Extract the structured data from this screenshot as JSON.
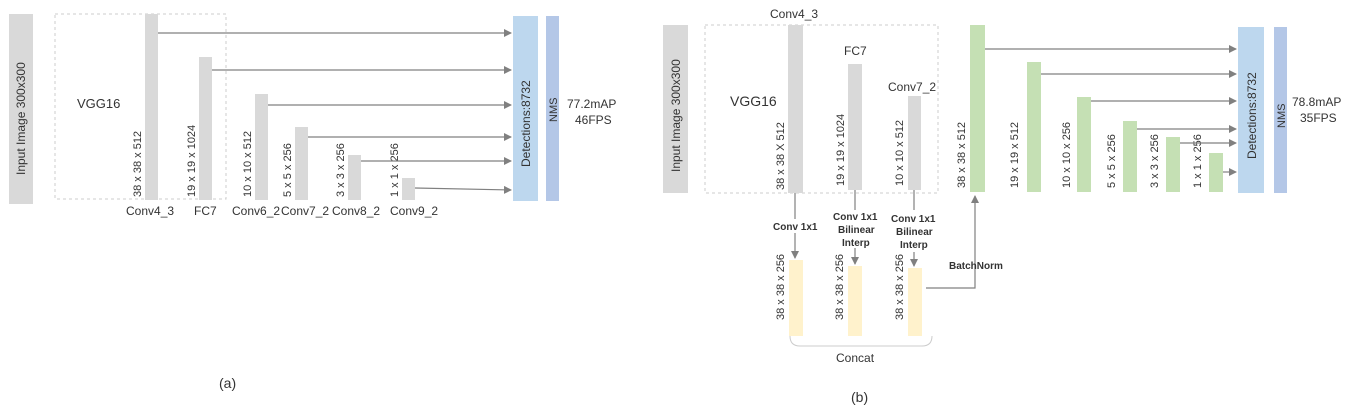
{
  "colors": {
    "gray_bar": "#d9d9d9",
    "blue_detect": "#bdd7ee",
    "blue_nms": "#b4c7e7",
    "green": "#c5e0b4",
    "yellow": "#fff2cc",
    "arrow": "#808080",
    "dashed": "#cccccc"
  },
  "panel_a": {
    "input_label": "Input Image 300x300",
    "backbone_label": "VGG16",
    "layers": [
      {
        "name": "Conv4_3",
        "dims": "38 x 38 x 512"
      },
      {
        "name": "FC7",
        "dims": "19 x 19 x 1024"
      },
      {
        "name": "Conv6_2",
        "dims": "10 x 10 x 512"
      },
      {
        "name": "Conv7_2",
        "dims": "5 x 5 x 256"
      },
      {
        "name": "Conv8_2",
        "dims": "3 x 3 x 256"
      },
      {
        "name": "Conv9_2",
        "dims": "1 x 1 x 256"
      }
    ],
    "detections_label": "Detections:8732",
    "nms_label": "NMS",
    "result_map": "77.2mAP",
    "result_fps": "46FPS",
    "caption": "(a)"
  },
  "panel_b": {
    "input_label": "Input Image 300x300",
    "backbone_label": "VGG16",
    "sources": [
      {
        "name": "Conv4_3",
        "dims": "38 x 38 X 512",
        "op": "Conv 1x1",
        "out": "38 x 38 x 256"
      },
      {
        "name": "FC7",
        "dims": "19 x 19  x 1024",
        "op_line1": "Conv 1x1",
        "op_line2": "Bilinear",
        "op_line3": "Interp",
        "out": "38 x 38 x 256"
      },
      {
        "name": "Conv7_2",
        "dims": "10 x 10 x 512",
        "op_line1": "Conv 1x1",
        "op_line2": "Bilinear",
        "op_line3": "Interp",
        "out": "38 x 38 x 256"
      }
    ],
    "concat_label": "Concat",
    "batchnorm_label": "BatchNorm",
    "pyramid": [
      {
        "dims": "38 x 38 x 512"
      },
      {
        "dims": "19 x 19 x 512"
      },
      {
        "dims": "10 x 10 x 256"
      },
      {
        "dims": "5 x 5 x 256"
      },
      {
        "dims": "3 x 3 x 256"
      },
      {
        "dims": "1 x 1 x 256"
      }
    ],
    "detections_label": "Detections:8732",
    "nms_label": "NMS",
    "result_map": "78.8mAP",
    "result_fps": "35FPS",
    "caption": "(b)"
  }
}
